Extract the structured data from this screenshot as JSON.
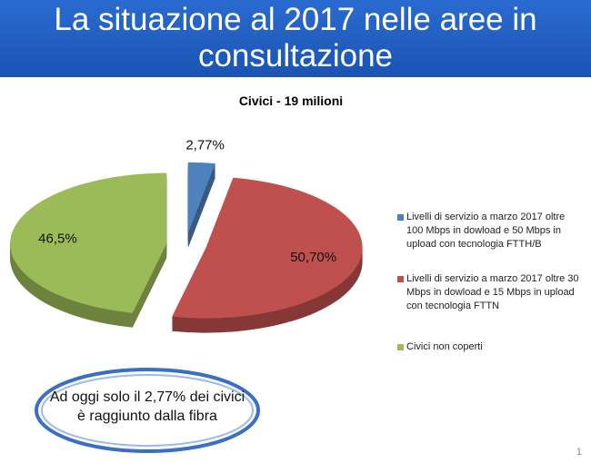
{
  "header": {
    "title": "La situazione al 2017 nelle aree in consultazione"
  },
  "chart_data": {
    "type": "pie",
    "title": "Civici - 19 milioni",
    "categories": [
      "Livelli di servizio a marzo 2017 oltre 100 Mbps in dowload e 50 Mbps in upload con tecnologia FTTH/B",
      "Livelli di servizio a marzo 2017 oltre 30 Mbps in dowload e 15 Mbps in upload con tecnologia FTTN",
      "Civici non coperti"
    ],
    "values": [
      2.77,
      50.7,
      46.5
    ],
    "value_labels": [
      "2,77%",
      "50,70%",
      "46,5%"
    ],
    "colors": [
      "#4f81bd",
      "#c0504d",
      "#9bbb59"
    ],
    "legend": "right"
  },
  "callout": "Ad oggi solo il 2,77% dei civici è raggiunto dalla fibra",
  "page_number": "1"
}
